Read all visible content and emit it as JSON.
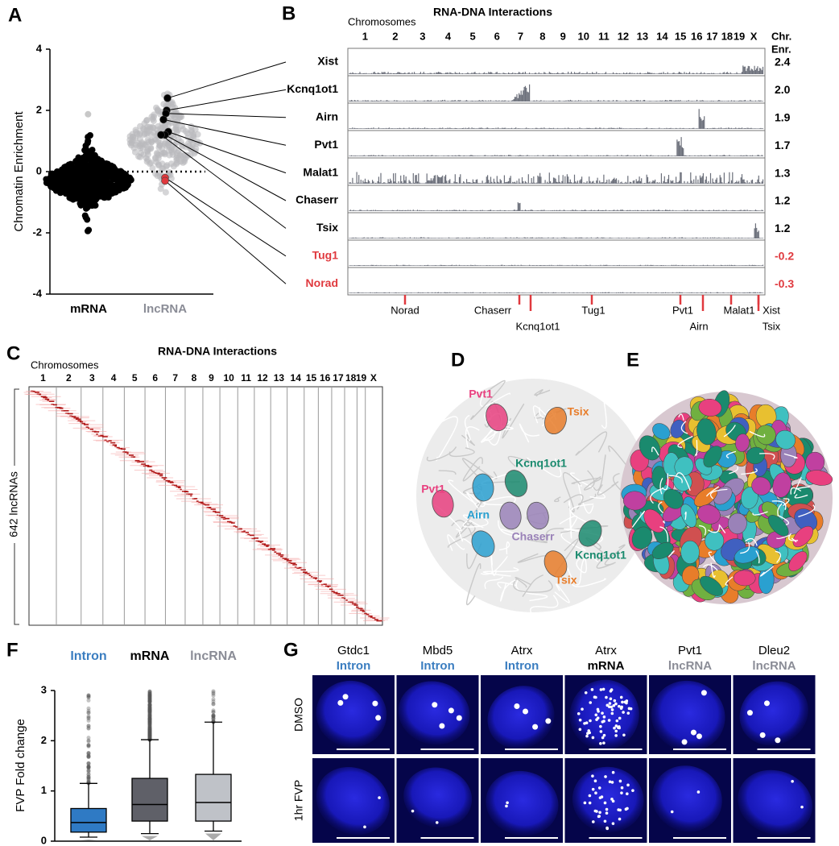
{
  "panels": {
    "A": {
      "label": "A",
      "y_axis_label": "Chromatin Enrichment",
      "ylim": [
        -4,
        4
      ],
      "yticks": [
        -4,
        -2,
        0,
        2,
        4
      ],
      "categories": [
        "mRNA",
        "lncRNA"
      ],
      "category_colors": [
        "#000000",
        "#8a8c96"
      ]
    },
    "B": {
      "label": "B",
      "title": "RNA-DNA Interactions",
      "axis_label": "Chromosomes",
      "chromosomes": [
        "1",
        "2",
        "3",
        "4",
        "5",
        "6",
        "7",
        "8",
        "9",
        "10",
        "11",
        "12",
        "13",
        "14",
        "15",
        "16",
        "17",
        "18",
        "19",
        "X"
      ],
      "enrichment_header": [
        "Chr.",
        "Enr."
      ],
      "tracks": [
        {
          "name": "Xist",
          "enrichment": "2.4",
          "color": "#000000"
        },
        {
          "name": "Kcnq1ot1",
          "enrichment": "2.0",
          "color": "#000000"
        },
        {
          "name": "Airn",
          "enrichment": "1.9",
          "color": "#000000"
        },
        {
          "name": "Pvt1",
          "enrichment": "1.7",
          "color": "#000000"
        },
        {
          "name": "Malat1",
          "enrichment": "1.3",
          "color": "#000000"
        },
        {
          "name": "Chaserr",
          "enrichment": "1.2",
          "color": "#000000"
        },
        {
          "name": "Tsix",
          "enrichment": "1.2",
          "color": "#000000"
        },
        {
          "name": "Tug1",
          "enrichment": "-0.2",
          "color": "#e0393e"
        },
        {
          "name": "Norad",
          "enrichment": "-0.3",
          "color": "#e0393e"
        }
      ],
      "markers": [
        "Norad",
        "Chaserr",
        "Kcnq1ot1",
        "Tug1",
        "Pvt1",
        "Airn",
        "Malat1",
        "Xist",
        "Tsix"
      ],
      "marker_color": "#e0393e",
      "signal_color": "#6b6f7a"
    },
    "C": {
      "label": "C",
      "title": "RNA-DNA Interactions",
      "axis_label": "Chromosomes",
      "chromosomes": [
        "1",
        "2",
        "3",
        "4",
        "5",
        "6",
        "7",
        "8",
        "9",
        "10",
        "11",
        "12",
        "13",
        "14",
        "15",
        "16",
        "17",
        "18",
        "19",
        "X"
      ],
      "y_axis_label": "642 lncRNAs"
    },
    "D": {
      "label": "D",
      "labels": [
        {
          "text": "Pvt1",
          "color": "#e8407f"
        },
        {
          "text": "Tsix",
          "color": "#e87d2a"
        },
        {
          "text": "Pvt1",
          "color": "#e8407f"
        },
        {
          "text": "Kcnq1ot1",
          "color": "#1a8a6e"
        },
        {
          "text": "Airn",
          "color": "#2aa0d0"
        },
        {
          "text": "Chaserr",
          "color": "#9a82b8"
        },
        {
          "text": "Kcnq1ot1",
          "color": "#1a8a6e"
        },
        {
          "text": "Tsix",
          "color": "#e87d2a"
        }
      ]
    },
    "E": {
      "label": "E"
    },
    "F": {
      "label": "F",
      "y_axis_label": "FVP Fold change",
      "ylim": [
        0,
        3
      ],
      "yticks": [
        0,
        1,
        2,
        3
      ],
      "groups": [
        {
          "name": "Intron",
          "color": "#3a7dc0",
          "fill": "#2f7ac4",
          "whisker_low": 0.08,
          "q1": 0.18,
          "median": 0.37,
          "q3": 0.65,
          "whisker_high": 1.15
        },
        {
          "name": "mRNA",
          "color": "#000000",
          "fill": "#5f6068",
          "whisker_low": 0.15,
          "q1": 0.4,
          "median": 0.73,
          "q3": 1.25,
          "whisker_high": 2.02
        },
        {
          "name": "lncRNA",
          "color": "#8a8c96",
          "fill": "#bfc2c8",
          "whisker_low": 0.2,
          "q1": 0.4,
          "median": 0.77,
          "q3": 1.33,
          "whisker_high": 2.37
        }
      ]
    },
    "G": {
      "label": "G",
      "columns": [
        {
          "gene": "Gtdc1",
          "type": "Intron",
          "color": "#3a7dc0"
        },
        {
          "gene": "Mbd5",
          "type": "Intron",
          "color": "#3a7dc0"
        },
        {
          "gene": "Atrx",
          "type": "Intron",
          "color": "#3a7dc0"
        },
        {
          "gene": "Atrx",
          "type": "mRNA",
          "color": "#000000"
        },
        {
          "gene": "Pvt1",
          "type": "lncRNA",
          "color": "#8a8c96"
        },
        {
          "gene": "Dleu2",
          "type": "lncRNA",
          "color": "#8a8c96"
        }
      ],
      "rows": [
        "DMSO",
        "1hr FVP"
      ]
    }
  }
}
